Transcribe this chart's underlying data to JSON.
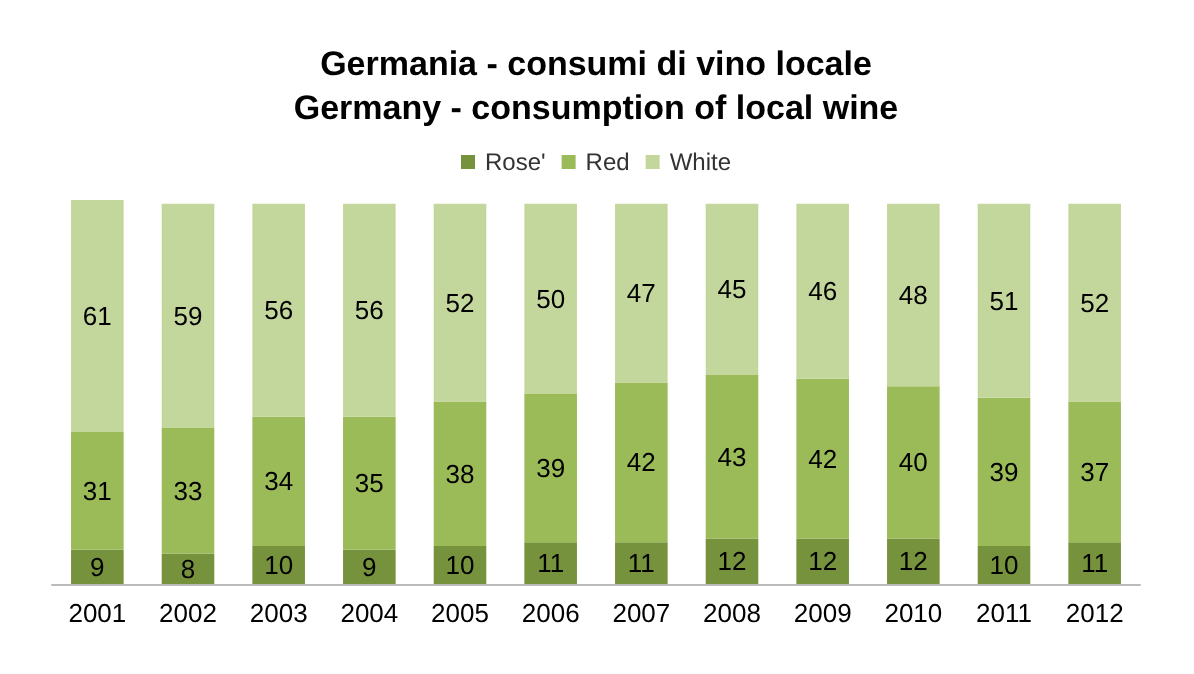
{
  "chart_data": {
    "type": "bar",
    "title": "Germania - consumi di vino locale\nGermany - consumption of local wine",
    "categories": [
      "2001",
      "2002",
      "2003",
      "2004",
      "2005",
      "2006",
      "2007",
      "2008",
      "2009",
      "2010",
      "2011",
      "2012"
    ],
    "series": [
      {
        "name": "Rose'",
        "color": "#76923c",
        "values": [
          9,
          8,
          10,
          9,
          10,
          11,
          11,
          12,
          12,
          12,
          10,
          11
        ]
      },
      {
        "name": "Red",
        "color": "#9bbb59",
        "values": [
          31,
          33,
          34,
          35,
          38,
          39,
          42,
          43,
          42,
          40,
          39,
          37
        ]
      },
      {
        "name": "White",
        "color": "#c3d69b",
        "values": [
          61,
          59,
          56,
          56,
          52,
          50,
          47,
          45,
          46,
          48,
          51,
          52
        ]
      }
    ],
    "stacked": true,
    "data_labels": true,
    "legend": "top"
  }
}
